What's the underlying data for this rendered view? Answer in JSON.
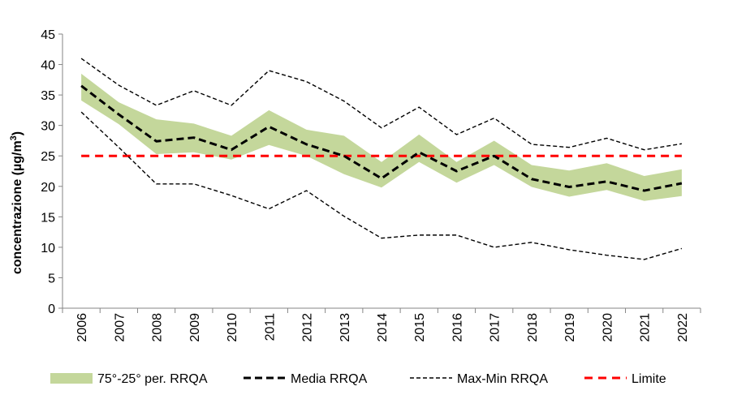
{
  "chart_data": {
    "type": "line",
    "ylabel": "concentrazione (µg/m",
    "ylabel_sup": "3",
    "ylabel_close": ")",
    "ylim": [
      0,
      45
    ],
    "yticks": [
      0,
      5,
      10,
      15,
      20,
      25,
      30,
      35,
      40,
      45
    ],
    "categories": [
      "2006",
      "2007",
      "2008",
      "2009",
      "2010",
      "2011",
      "2012",
      "2013",
      "2014",
      "2015",
      "2016",
      "2017",
      "2018",
      "2019",
      "2020",
      "2021",
      "2022"
    ],
    "band": {
      "name": "75°-25° per. RRQA",
      "color": "#c4d79b",
      "upper": [
        38.5,
        33.8,
        31.0,
        30.3,
        28.3,
        32.5,
        29.3,
        28.3,
        24.0,
        28.5,
        24.0,
        27.5,
        23.5,
        22.6,
        23.8,
        21.7,
        22.8
      ],
      "lower": [
        34.1,
        30.2,
        25.3,
        25.6,
        24.4,
        26.8,
        25.0,
        22.0,
        19.8,
        24.0,
        20.6,
        23.5,
        19.9,
        18.3,
        19.4,
        17.6,
        18.4
      ]
    },
    "series": [
      {
        "name": "Media RRQA",
        "color": "#000000",
        "style": "dashed-thick",
        "values": [
          36.5,
          31.8,
          27.4,
          28.0,
          26.0,
          29.8,
          26.9,
          25.0,
          21.3,
          25.6,
          22.5,
          25.0,
          21.2,
          19.9,
          20.8,
          19.3,
          20.5
        ]
      },
      {
        "name": "Max-Min RRQA",
        "color": "#000000",
        "style": "dashed-thin",
        "values": [
          41.0,
          36.6,
          33.3,
          35.7,
          33.3,
          39.0,
          37.2,
          34.0,
          29.6,
          33.0,
          28.5,
          31.2,
          26.9,
          26.4,
          27.9,
          26.0,
          27.0
        ]
      },
      {
        "name": "Max-Min RRQA",
        "color": "#000000",
        "style": "dashed-thin",
        "values": [
          32.2,
          26.4,
          20.4,
          20.4,
          18.5,
          16.3,
          19.3,
          15.1,
          11.5,
          12.0,
          12.0,
          10.0,
          10.8,
          9.6,
          8.7,
          8.0,
          9.8
        ]
      },
      {
        "name": "Limite",
        "color": "#ff0000",
        "style": "dashed-red",
        "values": [
          25,
          25,
          25,
          25,
          25,
          25,
          25,
          25,
          25,
          25,
          25,
          25,
          25,
          25,
          25,
          25,
          25
        ]
      }
    ],
    "legend": {
      "position": "bottom",
      "items": [
        {
          "label": "75°-25° per. RRQA",
          "kind": "band",
          "color": "#c4d79b"
        },
        {
          "label": "Media RRQA",
          "kind": "dashed-thick",
          "color": "#000000"
        },
        {
          "label": "Max-Min RRQA",
          "kind": "dashed-thin",
          "color": "#000000"
        },
        {
          "label": "Limite",
          "kind": "dashed-red",
          "color": "#ff0000"
        }
      ]
    },
    "grid": false
  }
}
